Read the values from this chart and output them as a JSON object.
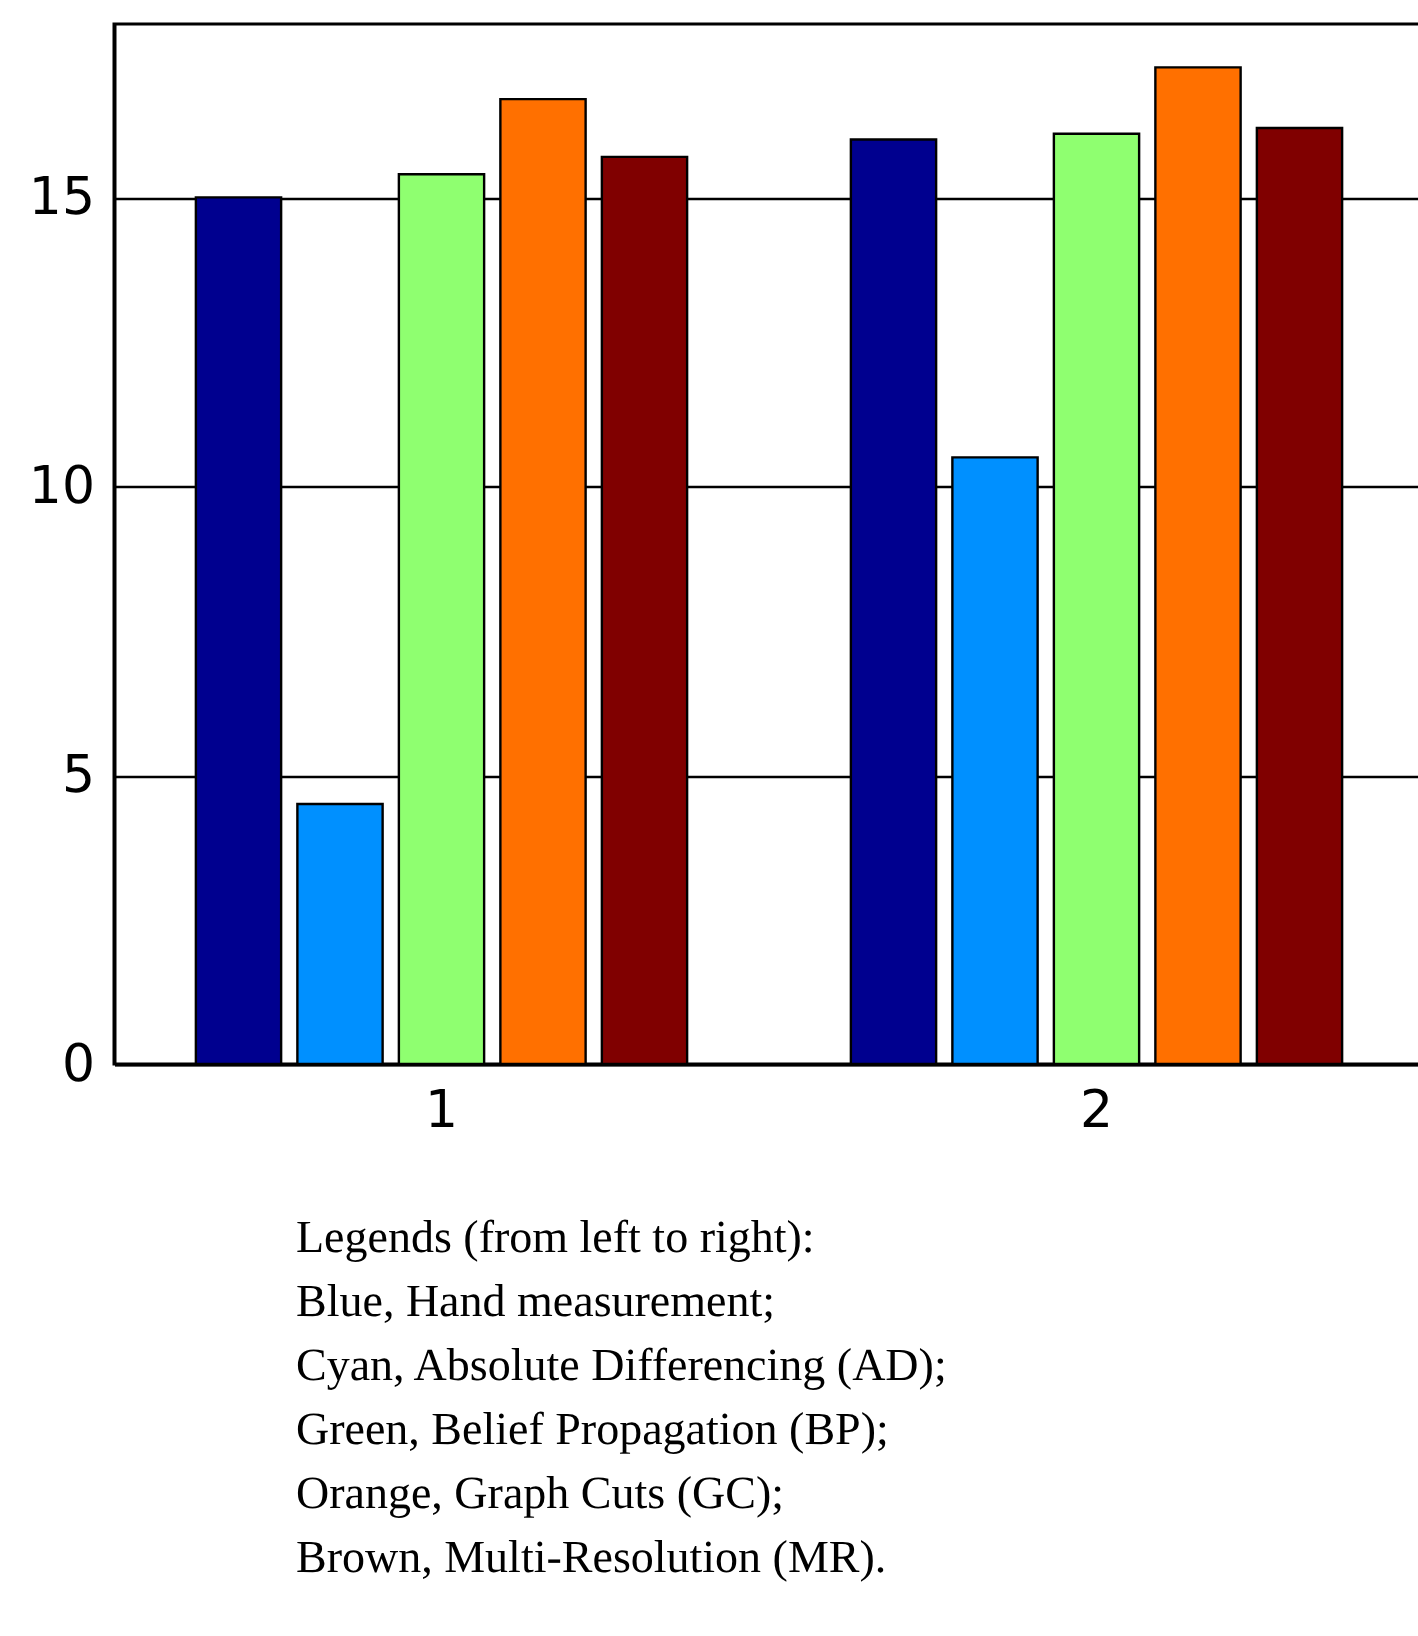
{
  "chart_data": {
    "type": "bar",
    "categories": [
      "1",
      "2"
    ],
    "series": [
      {
        "color": "#00008f",
        "values": [
          15.0,
          16.0
        ]
      },
      {
        "color": "#0090ff",
        "values": [
          4.5,
          10.5
        ]
      },
      {
        "color": "#8fff70",
        "values": [
          15.4,
          16.1
        ]
      },
      {
        "color": "#ff7000",
        "values": [
          16.7,
          17.25
        ]
      },
      {
        "color": "#800000",
        "values": [
          15.7,
          16.2
        ]
      }
    ],
    "ylim": [
      0,
      18
    ],
    "yticks": [
      0,
      5,
      10,
      15
    ],
    "grid": "y",
    "annotations": [
      "Legends (from left to right):",
      "Blue, Hand measurement;",
      "Cyan, Absolute Differencing (AD);",
      "Green, Belief Propagation (BP);",
      "Orange, Graph Cuts (GC);",
      "Brown, Multi-Resolution (MR)."
    ]
  }
}
